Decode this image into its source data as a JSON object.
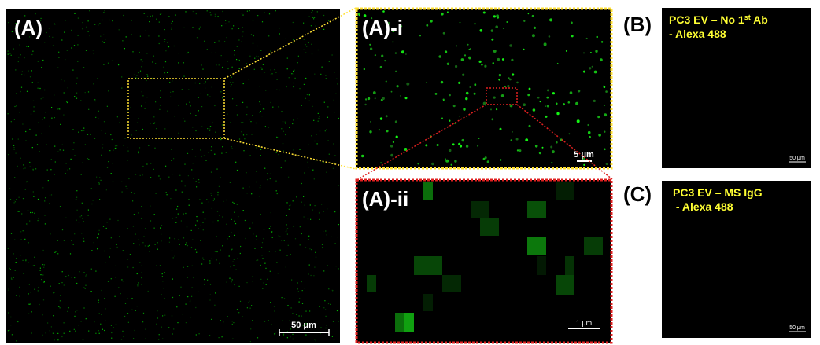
{
  "panel_a": {
    "label": "(A)",
    "scale_bar": "50 μm"
  },
  "panel_a_i": {
    "label": "(A)-i",
    "scale_bar": "5 μm"
  },
  "panel_a_ii": {
    "label": "(A)-ii",
    "scale_bar": "1 μm"
  },
  "panel_b": {
    "label": "(B)",
    "caption_line1": [
      "PC3 EV – No 1",
      "st",
      " Ab"
    ],
    "caption_line2": "- Alexa 488",
    "scale_bar": "50 μm"
  },
  "panel_c": {
    "label": "(C)",
    "caption_line1": "PC3 EV – MS IgG",
    "caption_line2": " - Alexa 488",
    "scale_bar": "50 μm"
  }
}
